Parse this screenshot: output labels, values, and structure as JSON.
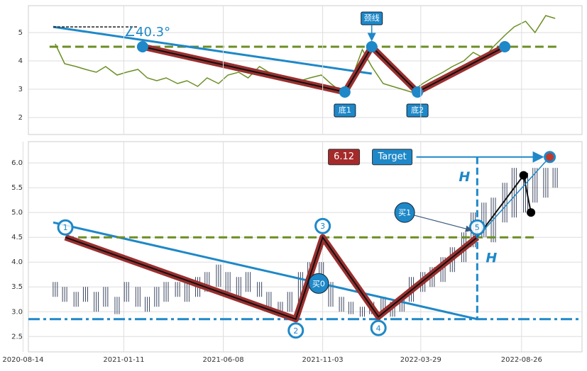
{
  "chart_data": [
    {
      "type": "line",
      "x": [
        "2020-10-01",
        "2020-10-15",
        "2020-11-01",
        "2020-11-15",
        "2020-12-01",
        "2020-12-15",
        "2021-01-01",
        "2021-01-15",
        "2021-02-01",
        "2021-02-15",
        "2021-03-01",
        "2021-03-15",
        "2021-04-01",
        "2021-04-15",
        "2021-05-01",
        "2021-05-15",
        "2021-06-01",
        "2021-06-15",
        "2021-07-01",
        "2021-07-15",
        "2021-08-01",
        "2021-08-15",
        "2021-09-01",
        "2021-09-15",
        "2021-10-01",
        "2021-10-15",
        "2021-11-01",
        "2021-11-15",
        "2021-12-01",
        "2021-12-15",
        "2022-01-01",
        "2022-01-15",
        "2022-02-01",
        "2022-02-15",
        "2022-03-01",
        "2022-03-15",
        "2022-04-01",
        "2022-04-15",
        "2022-05-01",
        "2022-05-15",
        "2022-06-01",
        "2022-06-15",
        "2022-07-01",
        "2022-07-15",
        "2022-08-01",
        "2022-08-15",
        "2022-09-01",
        "2022-09-15",
        "2022-10-01",
        "2022-10-15"
      ],
      "values": [
        4.6,
        3.9,
        3.8,
        3.7,
        3.6,
        3.8,
        3.5,
        3.6,
        3.7,
        3.4,
        3.3,
        3.4,
        3.2,
        3.3,
        3.1,
        3.4,
        3.2,
        3.5,
        3.6,
        3.4,
        3.8,
        3.6,
        3.5,
        3.4,
        3.3,
        3.4,
        3.5,
        3.2,
        2.9,
        3.3,
        4.4,
        3.8,
        3.2,
        3.1,
        3.0,
        2.9,
        3.2,
        3.4,
        3.6,
        3.8,
        4.0,
        4.3,
        4.1,
        4.5,
        4.9,
        5.2,
        5.4,
        5.0,
        5.6,
        5.5
      ],
      "color": "#6b8e23",
      "xlim": [
        "2020-08-22",
        "2022-11-24"
      ],
      "ylim": [
        1.4,
        5.95
      ],
      "yticks": [
        2,
        3,
        4,
        5
      ],
      "grid": true,
      "neckline": 4.5,
      "trendline": {
        "x": [
          "2020-09-28",
          "2022-01-15"
        ],
        "values": [
          5.2,
          3.55
        ]
      },
      "pattern": {
        "x": [
          "2021-02-08",
          "2021-12-06",
          "2022-01-15",
          "2022-03-24",
          "2022-08-01"
        ],
        "values": [
          4.5,
          2.9,
          4.5,
          2.9,
          4.5
        ],
        "point_labels": [
          null,
          "底1",
          "颈线",
          "底2",
          null
        ]
      },
      "angle_label": "∠40.3°"
    },
    {
      "type": "candlestick",
      "x": [
        "2020-10-01",
        "2020-10-15",
        "2020-11-01",
        "2020-11-15",
        "2020-12-01",
        "2020-12-15",
        "2021-01-01",
        "2021-01-15",
        "2021-02-01",
        "2021-02-15",
        "2021-03-01",
        "2021-03-15",
        "2021-04-01",
        "2021-04-15",
        "2021-05-01",
        "2021-05-15",
        "2021-06-01",
        "2021-06-15",
        "2021-07-01",
        "2021-07-15",
        "2021-08-01",
        "2021-08-15",
        "2021-09-01",
        "2021-09-15",
        "2021-10-01",
        "2021-10-15",
        "2021-11-01",
        "2021-11-15",
        "2021-12-01",
        "2021-12-15",
        "2022-01-01",
        "2022-01-15",
        "2022-02-01",
        "2022-02-15",
        "2022-03-01",
        "2022-03-15",
        "2022-04-01",
        "2022-04-15",
        "2022-05-01",
        "2022-05-15",
        "2022-06-01",
        "2022-06-15",
        "2022-07-01",
        "2022-07-15",
        "2022-08-01",
        "2022-08-15",
        "2022-09-01",
        "2022-09-15",
        "2022-10-01",
        "2022-10-15"
      ],
      "low": [
        3.3,
        3.2,
        3.1,
        3.2,
        3.0,
        3.1,
        2.95,
        3.2,
        3.1,
        3.0,
        3.1,
        3.2,
        3.3,
        3.2,
        3.3,
        3.4,
        3.5,
        3.4,
        3.3,
        3.4,
        3.3,
        3.0,
        2.9,
        3.0,
        3.2,
        3.5,
        3.4,
        3.1,
        3.0,
        2.95,
        2.9,
        2.95,
        3.0,
        2.9,
        3.0,
        3.2,
        3.4,
        3.5,
        3.6,
        3.8,
        4.0,
        4.3,
        4.5,
        4.4,
        4.8,
        4.9,
        5.0,
        5.2,
        5.3,
        5.5
      ],
      "high": [
        3.6,
        3.5,
        3.4,
        3.5,
        3.4,
        3.5,
        3.3,
        3.6,
        3.5,
        3.3,
        3.5,
        3.6,
        3.6,
        3.6,
        3.7,
        3.8,
        3.95,
        3.8,
        3.7,
        3.8,
        3.6,
        3.4,
        3.2,
        3.4,
        3.8,
        4.0,
        4.0,
        3.6,
        3.3,
        3.2,
        3.1,
        3.2,
        3.3,
        3.2,
        3.3,
        3.7,
        3.8,
        3.9,
        4.1,
        4.3,
        4.6,
        5.0,
        5.2,
        5.3,
        5.6,
        5.9,
        5.8,
        5.9,
        5.9,
        5.9
      ],
      "color": "#3a4560",
      "xlim": [
        "2020-08-22",
        "2022-11-24"
      ],
      "ylim": [
        2.19,
        6.43
      ],
      "xticks": [
        "2020-08-14",
        "2021-01-11",
        "2021-06-08",
        "2021-11-03",
        "2022-03-29",
        "2022-08-26"
      ],
      "yticks": [
        {
          "value": 2.5,
          "label": "2.5"
        },
        {
          "value": 3,
          "label": "3.0"
        },
        {
          "value": 3.5,
          "label": "3.5"
        },
        {
          "value": 4,
          "label": "4.0"
        },
        {
          "value": 4.5,
          "label": "4.5"
        },
        {
          "value": 5,
          "label": "5.0"
        },
        {
          "value": 5.5,
          "label": "5.5"
        },
        {
          "value": 6,
          "label": "6.0"
        }
      ],
      "grid": true,
      "neckline": {
        "x": [
          "2020-10-16",
          "2022-09-16"
        ],
        "value": 4.5
      },
      "support": 2.85,
      "trendline": {
        "x": [
          "2020-09-28",
          "2022-06-21"
        ],
        "values": [
          4.8,
          2.85
        ]
      },
      "pattern": {
        "x": [
          "2020-10-16",
          "2021-09-24",
          "2021-11-03",
          "2022-01-25",
          "2022-06-21"
        ],
        "values": [
          4.5,
          2.85,
          4.5,
          2.9,
          4.5
        ],
        "point_labels": [
          "1",
          "2",
          "3",
          "4",
          "5"
        ]
      },
      "target": {
        "x": "2022-10-07",
        "value": 6.12,
        "value_label": "6.12",
        "label": "Target"
      },
      "height_labels": [
        "H",
        "H"
      ],
      "retest": {
        "x": [
          "2022-06-21",
          "2022-08-29",
          "2022-09-09"
        ],
        "values": [
          4.5,
          5.75,
          5.0
        ]
      },
      "buy_signals": [
        {
          "label": "买0",
          "x": "2021-10-28",
          "value": 3.57
        },
        {
          "label": "买1",
          "x": "2022-03-05",
          "value": 5.0
        }
      ]
    }
  ]
}
